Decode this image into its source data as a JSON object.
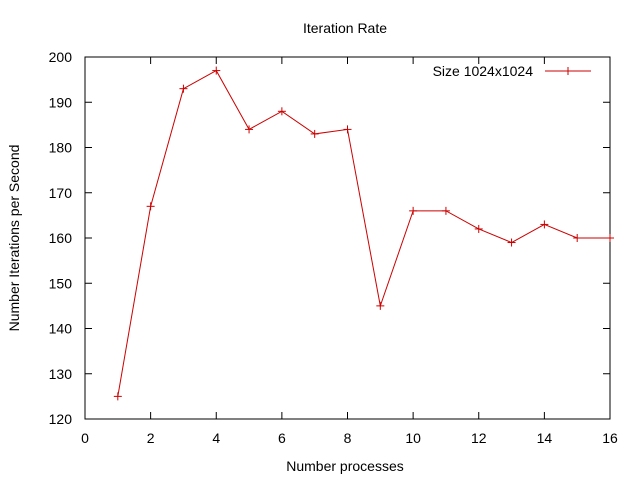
{
  "chart_data": {
    "type": "line",
    "title": "Iteration Rate",
    "xlabel": "Number processes",
    "ylabel": "Number Iterations per Second",
    "xlim": [
      0,
      16
    ],
    "ylim": [
      120,
      200
    ],
    "xticks": [
      0,
      2,
      4,
      6,
      8,
      10,
      12,
      14,
      16
    ],
    "yticks": [
      120,
      130,
      140,
      150,
      160,
      170,
      180,
      190,
      200
    ],
    "grid": false,
    "legend_position": "top-right",
    "series": [
      {
        "name": "Size 1024x1024",
        "color": "#cc0000",
        "marker": "plus",
        "x": [
          1,
          2,
          3,
          4,
          5,
          6,
          7,
          8,
          9,
          10,
          11,
          12,
          13,
          14,
          15,
          16
        ],
        "y": [
          125,
          167,
          193,
          197,
          184,
          188,
          183,
          184,
          145,
          166,
          166,
          162,
          159,
          163,
          160,
          160
        ]
      }
    ]
  }
}
